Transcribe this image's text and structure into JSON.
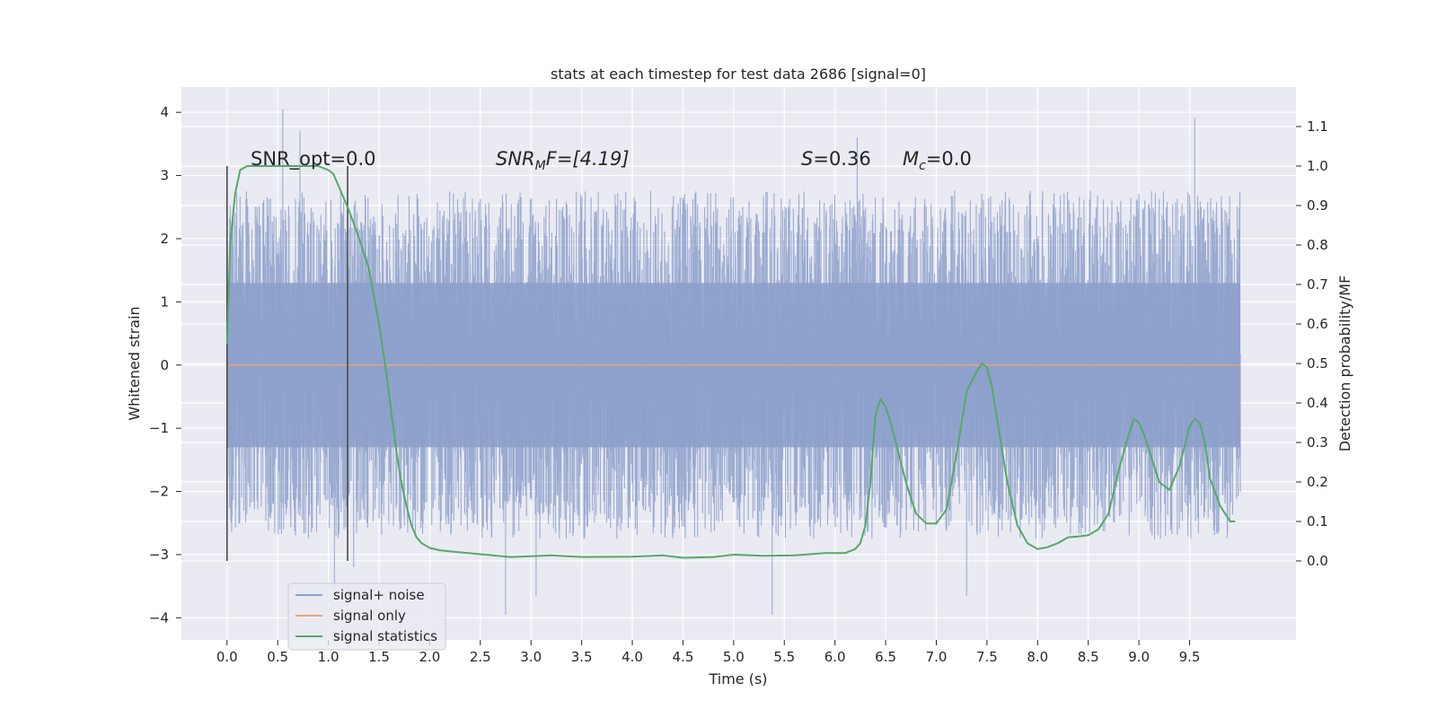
{
  "chart_data": {
    "type": "line",
    "title": "stats at each timestep for test data 2686 [signal=0]",
    "xlabel": "Time (s)",
    "ylabel_left": "Whitened strain",
    "ylabel_right": "Detection probability/MF",
    "xlim": [
      -0.45,
      10.55
    ],
    "ylim_left": [
      -4.35,
      4.4
    ],
    "ylim_right": [
      -0.2,
      1.2
    ],
    "grid": true,
    "legend_position": "lower-left",
    "xticks": [
      "0.0",
      "0.5",
      "1.0",
      "1.5",
      "2.0",
      "2.5",
      "3.0",
      "3.5",
      "4.0",
      "4.5",
      "5.0",
      "5.5",
      "6.0",
      "6.5",
      "7.0",
      "7.5",
      "8.0",
      "8.5",
      "9.0",
      "9.5"
    ],
    "yticks_left": [
      "4",
      "3",
      "2",
      "1",
      "0",
      "−1",
      "−2",
      "−3",
      "−4"
    ],
    "yticks_right": [
      "1.1",
      "1.0",
      "0.9",
      "0.8",
      "0.7",
      "0.6",
      "0.5",
      "0.4",
      "0.3",
      "0.2",
      "0.1",
      "0.0"
    ],
    "annotations": {
      "snr_opt": "SNR_opt=0.0",
      "snr_mf_base": "SNR",
      "snr_mf_sub": "M",
      "snr_mf_rest": "F=[4.19]",
      "s_var": "S",
      "s_val": "=0.36",
      "mc_base": "M",
      "mc_sub": "c",
      "mc_val": "=0.0"
    },
    "vlines": [
      0.0,
      1.19
    ],
    "series": [
      {
        "name": "signal+ noise",
        "axis": "left",
        "color": "#8da0cb",
        "x_range": [
          0.0,
          10.0
        ],
        "typical_envelope": [
          -2.4,
          2.4
        ],
        "extremes": [
          {
            "x": 0.55,
            "y": 4.05
          },
          {
            "x": 0.72,
            "y": 3.7
          },
          {
            "x": 1.06,
            "y": -3.55
          },
          {
            "x": 1.25,
            "y": -3.2
          },
          {
            "x": 2.75,
            "y": -3.95
          },
          {
            "x": 3.05,
            "y": -3.65
          },
          {
            "x": 5.38,
            "y": -3.95
          },
          {
            "x": 6.22,
            "y": 3.6
          },
          {
            "x": 7.3,
            "y": -3.65
          },
          {
            "x": 9.55,
            "y": 3.92
          }
        ]
      },
      {
        "name": "signal only",
        "axis": "left",
        "color": "#e8a37c",
        "x": [
          0.0,
          10.0
        ],
        "y": [
          0.0,
          0.0
        ]
      },
      {
        "name": "signal statistics",
        "axis": "right",
        "color": "#55a868",
        "x": [
          0.0,
          0.03,
          0.08,
          0.13,
          0.2,
          0.3,
          0.4,
          0.5,
          0.6,
          0.7,
          0.8,
          0.9,
          1.0,
          1.05,
          1.1,
          1.15,
          1.2,
          1.3,
          1.4,
          1.5,
          1.57,
          1.62,
          1.67,
          1.72,
          1.77,
          1.82,
          1.87,
          1.92,
          2.0,
          2.1,
          2.2,
          2.5,
          2.8,
          3.0,
          3.2,
          3.5,
          4.0,
          4.3,
          4.5,
          4.8,
          5.0,
          5.3,
          5.6,
          5.9,
          6.1,
          6.2,
          6.25,
          6.3,
          6.35,
          6.4,
          6.45,
          6.5,
          6.55,
          6.6,
          6.7,
          6.8,
          6.9,
          7.0,
          7.1,
          7.2,
          7.3,
          7.4,
          7.45,
          7.5,
          7.55,
          7.6,
          7.7,
          7.8,
          7.9,
          8.0,
          8.1,
          8.2,
          8.3,
          8.4,
          8.5,
          8.6,
          8.7,
          8.8,
          8.9,
          8.95,
          9.0,
          9.05,
          9.1,
          9.2,
          9.3,
          9.4,
          9.5,
          9.55,
          9.6,
          9.65,
          9.7,
          9.8,
          9.9,
          9.95
        ],
        "y": [
          0.55,
          0.8,
          0.93,
          0.99,
          1.0,
          1.0,
          1.0,
          1.0,
          1.0,
          1.0,
          1.0,
          1.0,
          0.99,
          0.98,
          0.95,
          0.92,
          0.89,
          0.82,
          0.74,
          0.6,
          0.48,
          0.38,
          0.28,
          0.2,
          0.14,
          0.09,
          0.06,
          0.045,
          0.033,
          0.027,
          0.024,
          0.017,
          0.01,
          0.012,
          0.014,
          0.01,
          0.011,
          0.014,
          0.008,
          0.01,
          0.016,
          0.013,
          0.014,
          0.02,
          0.02,
          0.03,
          0.045,
          0.09,
          0.2,
          0.37,
          0.41,
          0.39,
          0.35,
          0.3,
          0.2,
          0.12,
          0.095,
          0.095,
          0.13,
          0.27,
          0.43,
          0.48,
          0.5,
          0.49,
          0.44,
          0.36,
          0.2,
          0.09,
          0.045,
          0.03,
          0.035,
          0.045,
          0.06,
          0.062,
          0.065,
          0.08,
          0.12,
          0.23,
          0.32,
          0.36,
          0.35,
          0.32,
          0.28,
          0.2,
          0.18,
          0.24,
          0.34,
          0.36,
          0.35,
          0.3,
          0.21,
          0.14,
          0.1,
          0.1
        ]
      }
    ]
  }
}
